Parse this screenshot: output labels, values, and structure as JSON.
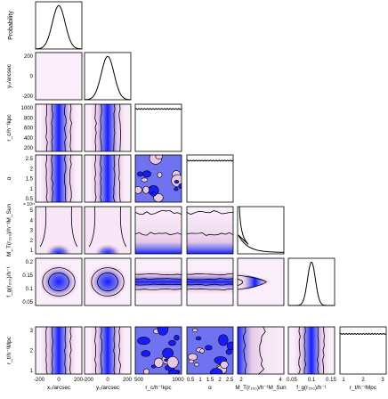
{
  "chart_data": {
    "type": "corner-plot",
    "description_free": true,
    "parameters": [
      {
        "key": "x0",
        "xlabel": "x₀/arcsec",
        "ylabel": "x₀/arcsec",
        "range": [
          -200,
          200
        ],
        "xticks": [
          "-200",
          "0",
          "200"
        ],
        "yticks": []
      },
      {
        "key": "y0",
        "xlabel": "y₀/arcsec",
        "ylabel": "y₀/arcsec",
        "range": [
          -200,
          200
        ],
        "xticks": [
          "-200",
          "0",
          "200"
        ],
        "yticks": [
          "200",
          "0",
          "-200"
        ]
      },
      {
        "key": "rc",
        "xlabel": "r_c/h⁻¹kpc",
        "ylabel": "r_c/h⁻¹kpc",
        "range": [
          0,
          1000
        ],
        "xticks": [
          "500",
          "1000"
        ],
        "yticks": [
          "1000",
          "800",
          "600",
          "400",
          "200"
        ]
      },
      {
        "key": "alpha",
        "xlabel": "α",
        "ylabel": "α",
        "range": [
          0,
          2.5
        ],
        "xticks": [
          "0.5",
          "1",
          "1.5",
          "2",
          "2.5"
        ],
        "yticks": [
          "2.5",
          "2",
          "1.5",
          "1",
          "0.5"
        ]
      },
      {
        "key": "MT",
        "xlabel": "M_T(r₂₀₀)/h⁻¹M_Sun",
        "ylabel": "M_T(r₂₀₀)/h⁻¹M_Sun",
        "range": [
          0,
          5
        ],
        "xticks": [
          "2",
          "4"
        ],
        "yticks": [
          "5",
          "4",
          "3",
          "2",
          "1"
        ],
        "multiplier": "× 10¹⁵"
      },
      {
        "key": "fg",
        "xlabel": "f_g(r₂₀₀)/h⁻¹",
        "ylabel": "f_g(r₂₀₀)/h⁻¹",
        "range": [
          0,
          0.2
        ],
        "xticks": [
          "0.05",
          "0.1",
          "0.15"
        ],
        "yticks": [
          "0.2",
          "0.15",
          "0.1",
          "0.05"
        ]
      },
      {
        "key": "rt",
        "xlabel": "r_t/h⁻¹Mpc",
        "ylabel": "r_t/h⁻¹Mpc",
        "range": [
          0,
          3
        ],
        "xticks": [
          "1",
          "2",
          "3"
        ],
        "yticks": [
          "3",
          "2",
          "1"
        ]
      }
    ],
    "diagonal_ylabel": "Probability",
    "marginals": {
      "x0": {
        "shape": "gaussian",
        "mean": 0,
        "sd": 55
      },
      "y0": {
        "shape": "gaussian",
        "mean": 0,
        "sd": 55
      },
      "rc": {
        "shape": "flat",
        "level": 0.9
      },
      "alpha": {
        "shape": "flat",
        "level": 0.88
      },
      "MT": {
        "shape": "decaying",
        "peak": 0.4
      },
      "fg": {
        "shape": "gaussian",
        "mean": 0.1,
        "sd": 0.017
      },
      "rt": {
        "shape": "flat",
        "level": 0.85
      }
    },
    "pair_styles": {
      "x0|y0": "blob",
      "rc|x0": "vband",
      "rc|y0": "vband",
      "alpha|x0": "vband",
      "alpha|y0": "vband",
      "alpha|rc": "noise",
      "MT|x0": "funnel",
      "MT|y0": "funnel",
      "MT|rc": "lowband",
      "MT|alpha": "lowband",
      "fg|x0": "blob",
      "fg|y0": "blob",
      "fg|rc": "hband",
      "fg|alpha": "hband",
      "fg|MT": "wedge",
      "rt|x0": "vband",
      "rt|y0": "vband",
      "rt|rc": "noise",
      "rt|alpha": "noise",
      "rt|MT": "mtleft",
      "rt|fg": "vbandfg"
    },
    "colors": {
      "core": "#1a1aff",
      "mid": "#6f73f0",
      "outer": "#e6c8e6",
      "edge": "#fbeefb"
    }
  }
}
